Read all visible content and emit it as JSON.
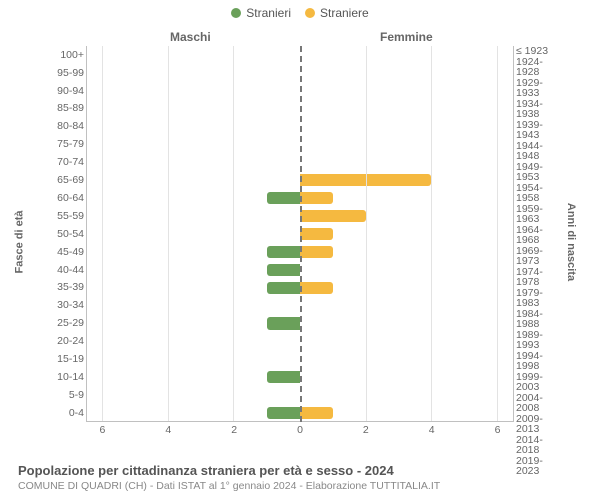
{
  "legend": {
    "male": {
      "label": "Stranieri",
      "color": "#6aa05a"
    },
    "female": {
      "label": "Straniere",
      "color": "#f5b940"
    }
  },
  "section_labels": {
    "male": "Maschi",
    "female": "Femmine"
  },
  "y_axis_left_label": "Fasce di età",
  "y_axis_right_label": "Anni di nascita",
  "title": "Popolazione per cittadinanza straniera per età e sesso - 2024",
  "subtitle": "COMUNE DI QUADRI (CH) - Dati ISTAT al 1° gennaio 2024 - Elaborazione TUTTITALIA.IT",
  "chart": {
    "type": "population-pyramid",
    "x_max": 6.5,
    "x_ticks": [
      0,
      2,
      4,
      6
    ],
    "background_color": "#ffffff",
    "grid_color": "#e3e3e3",
    "centerline_color": "#777777",
    "axis_color": "#c0c0c0",
    "age_groups": [
      {
        "age": "100+",
        "birth": "≤ 1923",
        "male": 0,
        "female": 0
      },
      {
        "age": "95-99",
        "birth": "1924-1928",
        "male": 0,
        "female": 0
      },
      {
        "age": "90-94",
        "birth": "1929-1933",
        "male": 0,
        "female": 0
      },
      {
        "age": "85-89",
        "birth": "1934-1938",
        "male": 0,
        "female": 0
      },
      {
        "age": "80-84",
        "birth": "1939-1943",
        "male": 0,
        "female": 0
      },
      {
        "age": "75-79",
        "birth": "1944-1948",
        "male": 0,
        "female": 0
      },
      {
        "age": "70-74",
        "birth": "1949-1953",
        "male": 0,
        "female": 0
      },
      {
        "age": "65-69",
        "birth": "1954-1958",
        "male": 0,
        "female": 4
      },
      {
        "age": "60-64",
        "birth": "1959-1963",
        "male": 1,
        "female": 1
      },
      {
        "age": "55-59",
        "birth": "1964-1968",
        "male": 0,
        "female": 2
      },
      {
        "age": "50-54",
        "birth": "1969-1973",
        "male": 0,
        "female": 1
      },
      {
        "age": "45-49",
        "birth": "1974-1978",
        "male": 1,
        "female": 1
      },
      {
        "age": "40-44",
        "birth": "1979-1983",
        "male": 1,
        "female": 0
      },
      {
        "age": "35-39",
        "birth": "1984-1988",
        "male": 1,
        "female": 1
      },
      {
        "age": "30-34",
        "birth": "1989-1993",
        "male": 0,
        "female": 0
      },
      {
        "age": "25-29",
        "birth": "1994-1998",
        "male": 1,
        "female": 0
      },
      {
        "age": "20-24",
        "birth": "1999-2003",
        "male": 0,
        "female": 0
      },
      {
        "age": "15-19",
        "birth": "2004-2008",
        "male": 0,
        "female": 0
      },
      {
        "age": "10-14",
        "birth": "2009-2013",
        "male": 1,
        "female": 0
      },
      {
        "age": "5-9",
        "birth": "2014-2018",
        "male": 0,
        "female": 0
      },
      {
        "age": "0-4",
        "birth": "2019-2023",
        "male": 1,
        "female": 1
      }
    ]
  }
}
